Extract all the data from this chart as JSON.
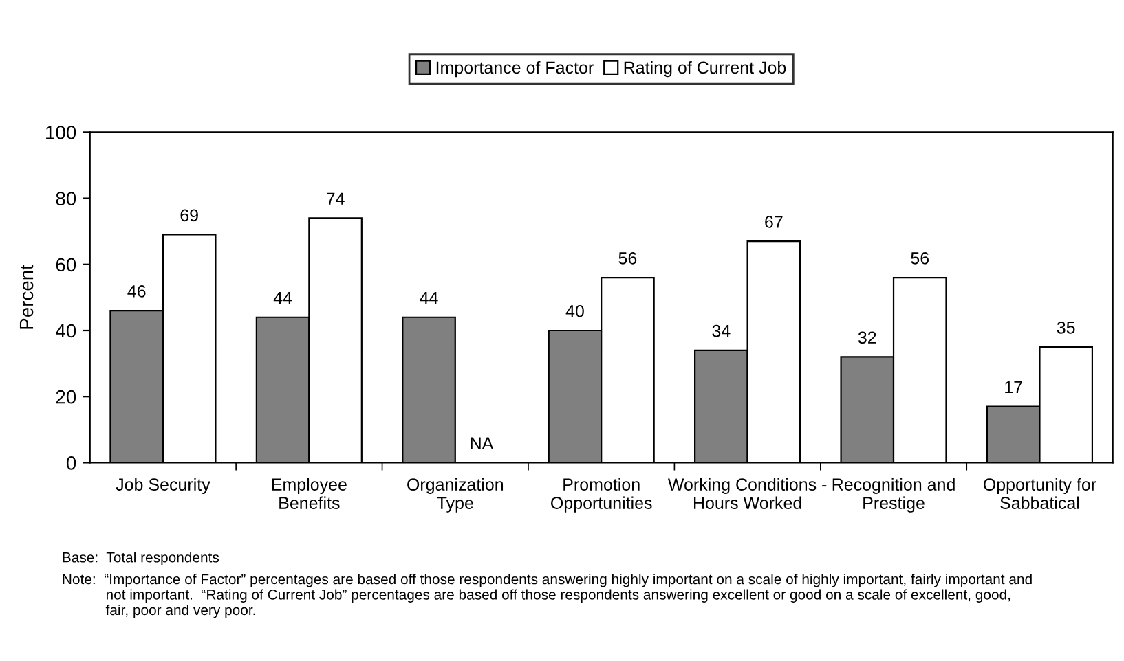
{
  "chart_data": {
    "type": "bar",
    "categories": [
      "Job Security",
      "Employee\nBenefits",
      "Organization\nType",
      "Promotion\nOpportunities",
      "Working Conditions -\nHours Worked",
      "Recognition and\nPrestige",
      "Opportunity for\nSabbatical"
    ],
    "series": [
      {
        "name": "Importance of Factor",
        "color": "#808080",
        "values": [
          46,
          44,
          44,
          40,
          34,
          32,
          17
        ],
        "value_labels": [
          "46",
          "44",
          "44",
          "40",
          "34",
          "32",
          "17"
        ]
      },
      {
        "name": "Rating of Current Job",
        "color": "#ffffff",
        "values": [
          69,
          74,
          null,
          56,
          67,
          56,
          35
        ],
        "value_labels": [
          "69",
          "74",
          "NA",
          "56",
          "67",
          "56",
          "35"
        ]
      }
    ],
    "ylabel": "Percent",
    "ylim": [
      0,
      100
    ],
    "yticks": [
      0,
      20,
      40,
      60,
      80,
      100
    ],
    "grid": false,
    "legend": "top",
    "annotations": [
      "Base:  Total respondents",
      "Note:  “Importance of Factor” percentages are based off those respondents answering highly important on a scale of highly important, fairly important and\n           not important.  “Rating of Current Job” percentages are based off those respondents answering excellent or good on a scale of excellent, good,\n           fair, poor and very poor."
    ]
  }
}
